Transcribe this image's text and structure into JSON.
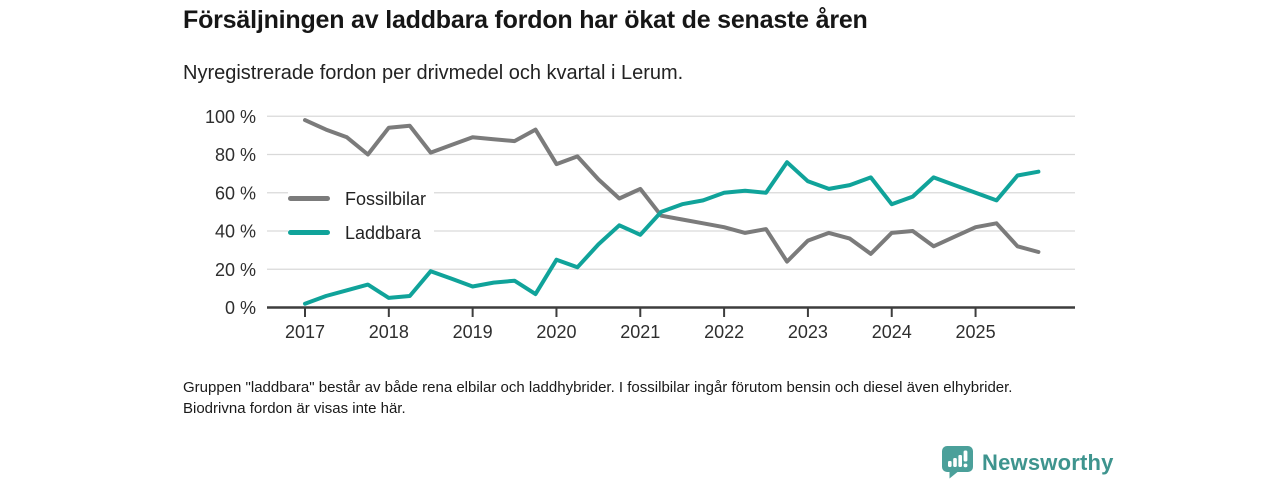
{
  "header": {
    "title": "Försäljningen av laddbara fordon har ökat de senaste åren",
    "subtitle": "Nyregistrerade fordon per drivmedel och kvartal i Lerum."
  },
  "legend": {
    "items": [
      {
        "label": "Fossilbilar",
        "color": "#7b7b7b"
      },
      {
        "label": "Laddbara",
        "color": "#10a39a"
      }
    ]
  },
  "chart_data": {
    "type": "line",
    "title": "Försäljningen av laddbara fordon har ökat de senaste åren",
    "subtitle": "Nyregistrerade fordon per drivmedel och kvartal i Lerum.",
    "unit": "%",
    "ylim": [
      0,
      100
    ],
    "grid": "horizontal",
    "legend_position": "inside-upper-left",
    "y_ticks": [
      0,
      20,
      40,
      60,
      80,
      100
    ],
    "y_tick_labels": [
      "0 %",
      "20 %",
      "40 %",
      "60 %",
      "80 %",
      "100 %"
    ],
    "x_tick_labels": [
      "2017",
      "2018",
      "2019",
      "2020",
      "2021",
      "2022",
      "2023",
      "2024",
      "2025"
    ],
    "x_frequency": "quarterly",
    "points_per_year": 4,
    "x_start": "2017 Q1",
    "x_end": "2025 Q4",
    "series": [
      {
        "name": "Fossilbilar",
        "color": "#7b7b7b",
        "values": [
          98,
          93,
          89,
          80,
          94,
          95,
          81,
          85,
          89,
          88,
          87,
          93,
          75,
          79,
          67,
          57,
          62,
          48,
          46,
          44,
          42,
          39,
          41,
          24,
          35,
          39,
          36,
          28,
          39,
          40,
          32,
          37,
          42,
          44,
          32,
          29
        ]
      },
      {
        "name": "Laddbara",
        "color": "#10a39a",
        "values": [
          2,
          6,
          9,
          12,
          5,
          6,
          19,
          15,
          11,
          13,
          14,
          7,
          25,
          21,
          33,
          43,
          38,
          50,
          54,
          56,
          60,
          61,
          60,
          76,
          66,
          62,
          64,
          68,
          54,
          58,
          68,
          64,
          60,
          56,
          69,
          71
        ]
      }
    ]
  },
  "footnote": {
    "text": "Gruppen \"laddbara\" består av både rena elbilar och laddhybrider. I fossilbilar ingår förutom bensin och diesel även elhybrider. Biodrivna fordon är visas inte här."
  },
  "branding": {
    "logo_text": "Newsworthy",
    "logo_icon": "bar-chart-speech-bubble-icon",
    "icon_color": "#4ba09a",
    "text_color": "#3e948e"
  },
  "style": {
    "gridline_color": "#d9d9d9",
    "axis_color": "#3d3d3d",
    "tick_label_color": "#2e2e2e",
    "background": "#ffffff"
  }
}
